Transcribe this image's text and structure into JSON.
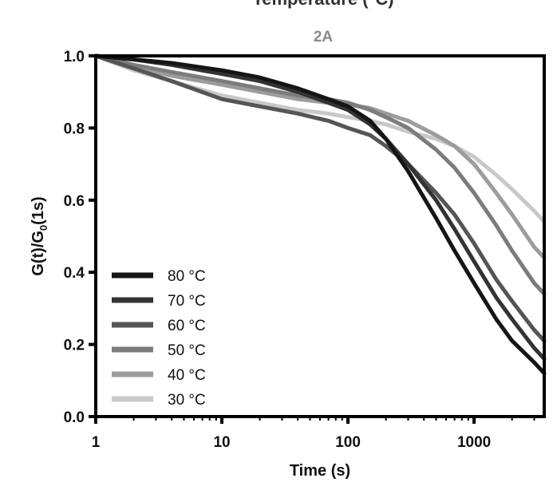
{
  "chart_data": {
    "type": "line",
    "top_text": "Temperature (°C)",
    "title": "2A",
    "xlabel": "Time (s)",
    "ylabel_main": "G(t)/G",
    "ylabel_sub": "0",
    "ylabel_tail": "(1s)",
    "xscale": "log",
    "xlim": [
      1,
      3600
    ],
    "ylim": [
      0,
      1.0
    ],
    "xticks": [
      {
        "value": 1,
        "label": "1"
      },
      {
        "value": 10,
        "label": "10"
      },
      {
        "value": 100,
        "label": "100"
      },
      {
        "value": 1000,
        "label": "1000"
      }
    ],
    "yticks": [
      {
        "value": 0.0,
        "label": "0.0"
      },
      {
        "value": 0.2,
        "label": "0.2"
      },
      {
        "value": 0.4,
        "label": "0.4"
      },
      {
        "value": 0.6,
        "label": "0.6"
      },
      {
        "value": 0.8,
        "label": "0.8"
      },
      {
        "value": 1.0,
        "label": "1.0"
      }
    ],
    "grid": false,
    "legend_position": "bottom-left",
    "series": [
      {
        "name": "80 °C",
        "color": "#151515",
        "x": [
          1,
          2,
          4,
          10,
          20,
          40,
          70,
          100,
          150,
          200,
          300,
          500,
          700,
          1000,
          1500,
          2000,
          3000,
          3600
        ],
        "y": [
          1.0,
          0.99,
          0.98,
          0.96,
          0.94,
          0.91,
          0.88,
          0.86,
          0.82,
          0.77,
          0.68,
          0.55,
          0.46,
          0.37,
          0.27,
          0.21,
          0.15,
          0.12
        ]
      },
      {
        "name": "70 °C",
        "color": "#333333",
        "x": [
          1,
          2,
          4,
          10,
          20,
          40,
          70,
          100,
          150,
          200,
          300,
          500,
          700,
          1000,
          1500,
          2000,
          3000,
          3600
        ],
        "y": [
          1.0,
          0.99,
          0.975,
          0.95,
          0.93,
          0.9,
          0.87,
          0.85,
          0.81,
          0.77,
          0.7,
          0.6,
          0.52,
          0.43,
          0.33,
          0.27,
          0.19,
          0.16
        ]
      },
      {
        "name": "60 °C",
        "color": "#555555",
        "x": [
          1,
          2,
          4,
          10,
          20,
          40,
          70,
          100,
          150,
          200,
          300,
          500,
          700,
          1000,
          1500,
          2000,
          3000,
          3600
        ],
        "y": [
          1.0,
          0.965,
          0.93,
          0.88,
          0.86,
          0.84,
          0.82,
          0.8,
          0.78,
          0.75,
          0.7,
          0.62,
          0.56,
          0.48,
          0.38,
          0.32,
          0.24,
          0.21
        ]
      },
      {
        "name": "50 °C",
        "color": "#7c7c7c",
        "x": [
          1,
          2,
          4,
          10,
          20,
          40,
          70,
          100,
          150,
          200,
          300,
          500,
          700,
          1000,
          1500,
          2000,
          3000,
          3600
        ],
        "y": [
          1.0,
          0.975,
          0.955,
          0.93,
          0.91,
          0.89,
          0.88,
          0.87,
          0.85,
          0.83,
          0.8,
          0.74,
          0.69,
          0.62,
          0.53,
          0.46,
          0.37,
          0.34
        ]
      },
      {
        "name": "40 °C",
        "color": "#9c9c9c",
        "x": [
          1,
          2,
          4,
          10,
          20,
          40,
          70,
          100,
          150,
          200,
          300,
          500,
          700,
          1000,
          1500,
          2000,
          3000,
          3600
        ],
        "y": [
          1.0,
          0.97,
          0.945,
          0.92,
          0.9,
          0.88,
          0.87,
          0.865,
          0.855,
          0.84,
          0.82,
          0.78,
          0.75,
          0.7,
          0.62,
          0.56,
          0.47,
          0.44
        ]
      },
      {
        "name": "30 °C",
        "color": "#c8c8c8",
        "x": [
          1,
          2,
          4,
          10,
          20,
          40,
          70,
          100,
          150,
          200,
          300,
          500,
          700,
          1000,
          1500,
          2000,
          3000,
          3600
        ],
        "y": [
          1.0,
          0.96,
          0.93,
          0.89,
          0.87,
          0.85,
          0.84,
          0.83,
          0.82,
          0.81,
          0.79,
          0.77,
          0.75,
          0.72,
          0.67,
          0.63,
          0.57,
          0.54
        ]
      }
    ],
    "colors": {
      "axis": "#000000",
      "title": "#8a8a8a",
      "top_text": "#333333"
    }
  }
}
